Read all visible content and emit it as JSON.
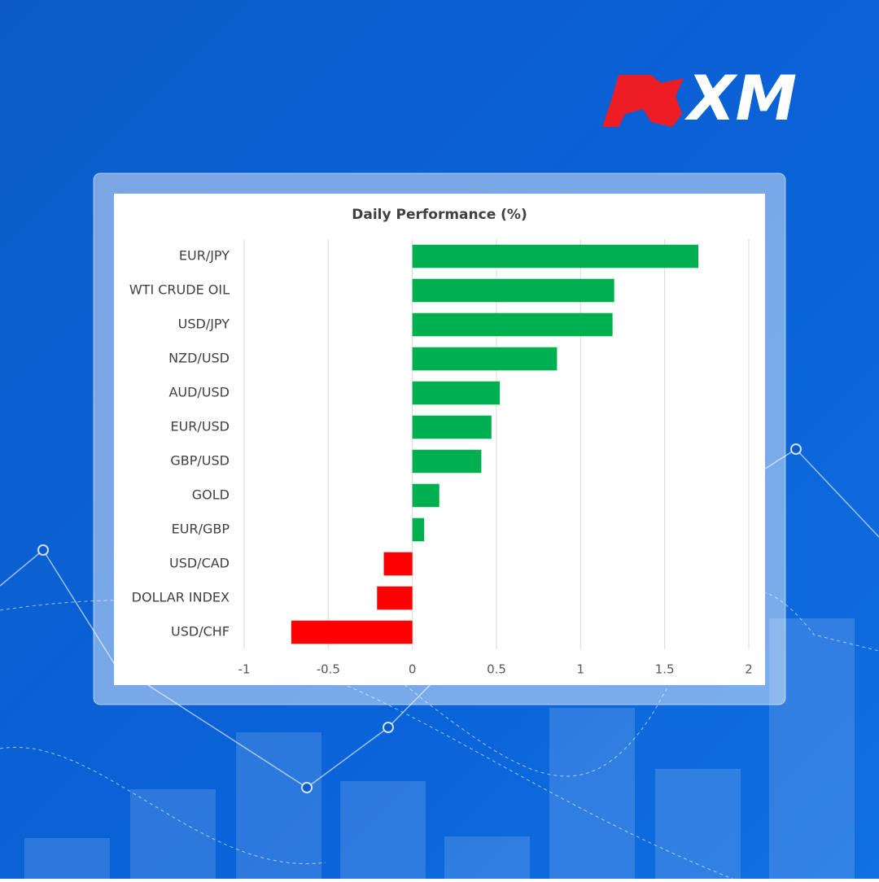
{
  "logo": "XM",
  "chart_data": {
    "type": "hbar",
    "title": "Daily Performance  (%)",
    "categories": [
      "EUR/JPY",
      "WTI CRUDE OIL",
      "USD/JPY",
      "NZD/USD",
      "AUD/USD",
      "EUR/USD",
      "GBP/USD",
      "GOLD",
      "EUR/GBP",
      "USD/CAD",
      "DOLLAR INDEX",
      "USD/CHF"
    ],
    "values": [
      1.7,
      1.2,
      1.19,
      0.86,
      0.52,
      0.47,
      0.41,
      0.16,
      0.07,
      -0.17,
      -0.21,
      -0.72
    ],
    "colors": [
      "#00b050",
      "#00b050",
      "#00b050",
      "#00b050",
      "#00b050",
      "#00b050",
      "#00b050",
      "#00b050",
      "#00b050",
      "#ff0000",
      "#ff0000",
      "#ff0000"
    ],
    "xlim": [
      -1,
      2
    ],
    "xticks": [
      -1,
      -0.5,
      0,
      0.5,
      1,
      1.5,
      2
    ],
    "grid": true
  }
}
